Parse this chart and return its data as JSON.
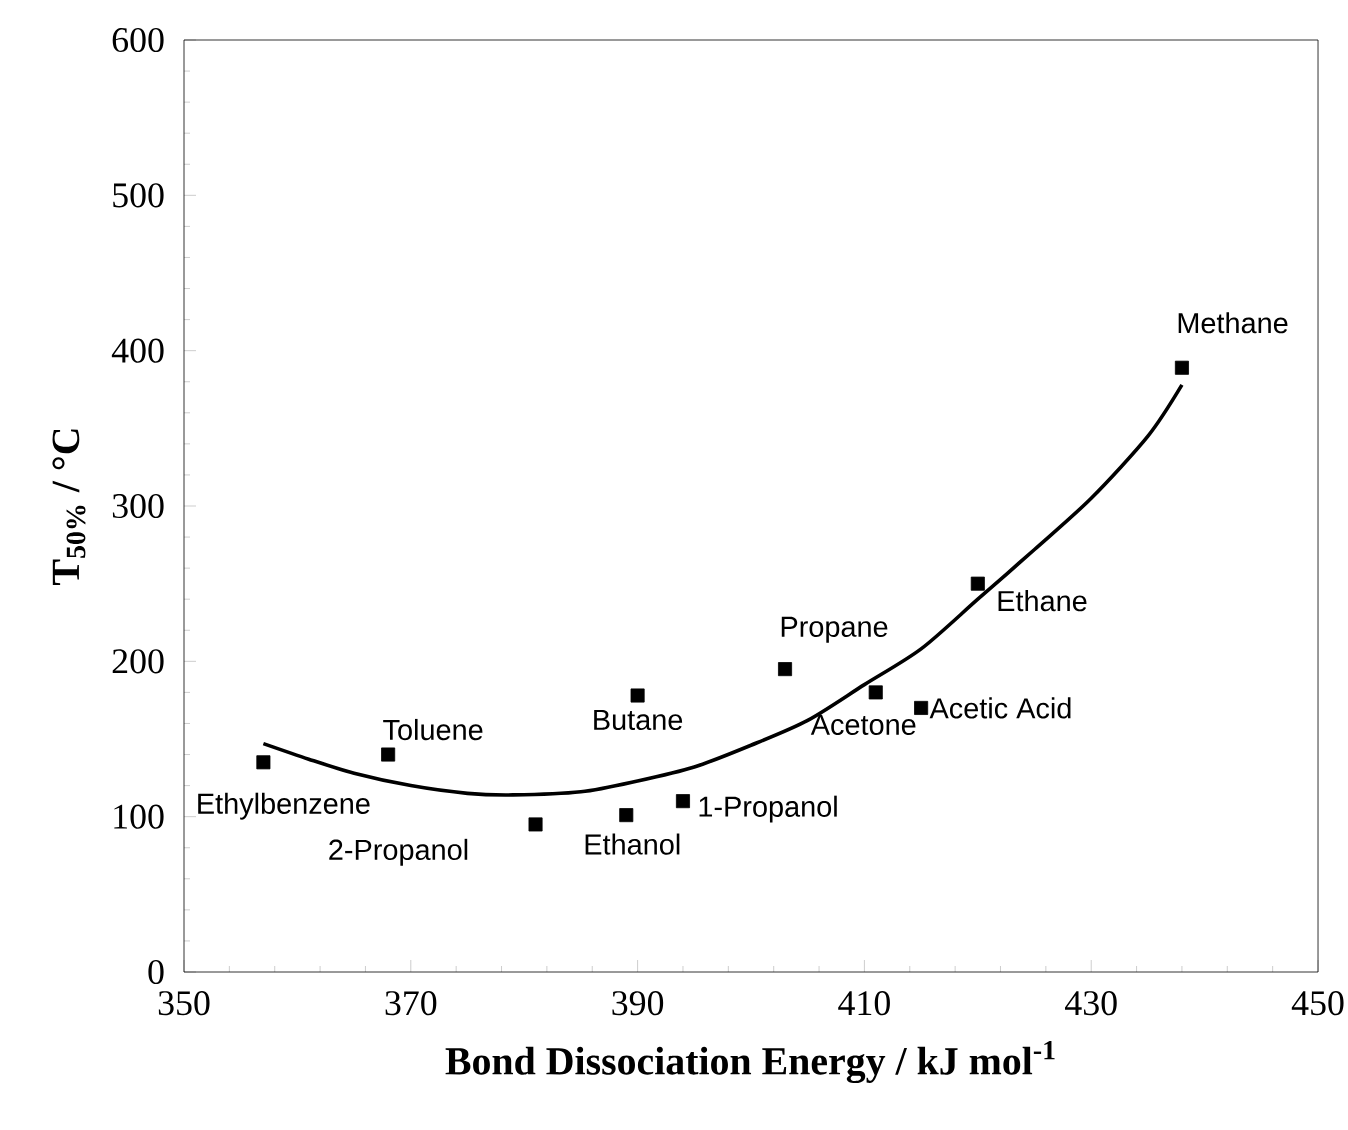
{
  "chart_data": {
    "type": "scatter",
    "xlabel": "Bond Dissociation Energy / kJ mol$^{-1}$",
    "ylabel": "T$_{50%}$  / °C",
    "xlim": [
      350,
      450
    ],
    "xticks": [
      350,
      370,
      390,
      410,
      430,
      450
    ],
    "ylim": [
      0,
      600
    ],
    "yticks": [
      0,
      100,
      200,
      300,
      400,
      500,
      600
    ],
    "series": [
      {
        "color": "#000000",
        "marker": "square",
        "x": [
          357,
          368,
          381,
          389,
          390,
          394,
          403,
          411,
          415,
          420,
          438
        ],
        "values": [
          135,
          140,
          95,
          101,
          178,
          110,
          195,
          180,
          170,
          250,
          389
        ]
      },
      {
        "type": "line",
        "color": "#000000",
        "marker": "none",
        "line_style": "solid",
        "x": [
          357,
          361,
          365,
          370,
          375,
          379,
          385,
          390,
          395,
          400,
          405,
          410,
          415,
          420,
          425,
          430,
          435,
          438
        ],
        "values": [
          147,
          137,
          128,
          120,
          115,
          114,
          116,
          123,
          132,
          146,
          162,
          185,
          208,
          240,
          272,
          305,
          345,
          378
        ]
      }
    ],
    "annotations": [
      {
        "text": "Ethylbenzene",
        "x": 357,
        "y": 135
      },
      {
        "text": "Toluene",
        "x": 368,
        "y": 140
      },
      {
        "text": "2-Propanol",
        "x": 381,
        "y": 95
      },
      {
        "text": "Ethanol",
        "x": 389,
        "y": 101
      },
      {
        "text": "Butane",
        "x": 390,
        "y": 178
      },
      {
        "text": "1-Propanol",
        "x": 394,
        "y": 110
      },
      {
        "text": "Propane",
        "x": 403,
        "y": 195
      },
      {
        "text": "Acetone",
        "x": 411,
        "y": 180
      },
      {
        "text": "Acetic Acid",
        "x": 415,
        "y": 170
      },
      {
        "text": "Ethane",
        "x": 420,
        "y": 250
      },
      {
        "text": "Methane",
        "x": 438,
        "y": 389
      }
    ]
  }
}
